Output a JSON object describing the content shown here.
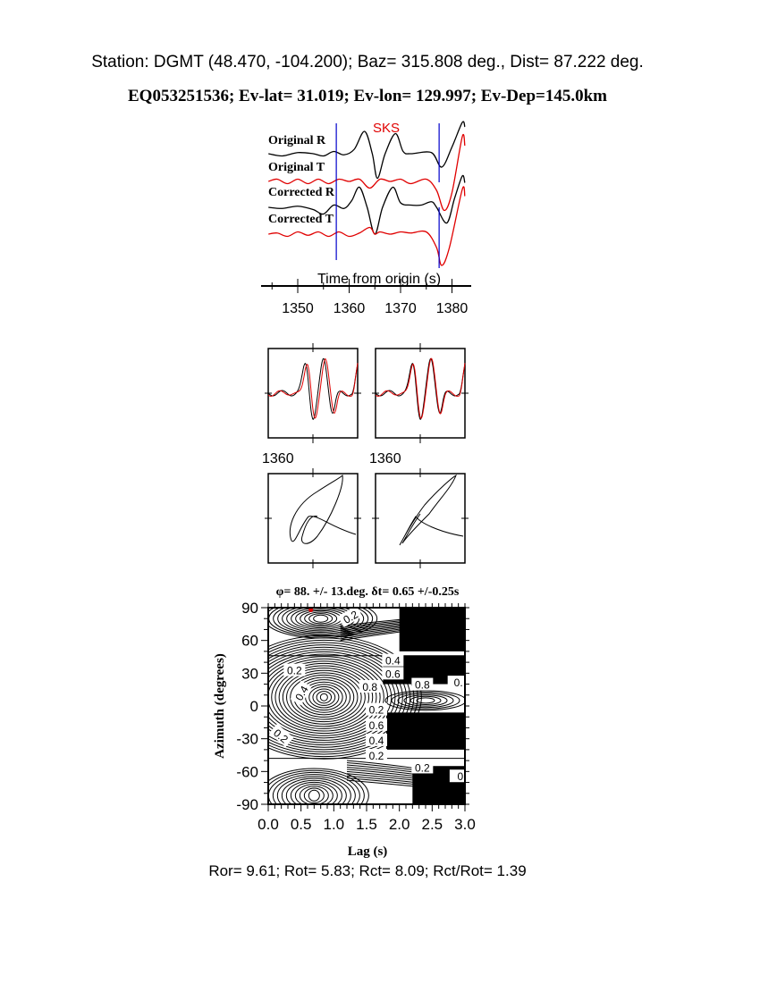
{
  "header": {
    "station_line": "Station: DGMT (48.470, -104.200); Baz=  315.808 deg., Dist=   87.222 deg.",
    "event_line": "EQ053251536; Ev-lat=  31.019; Ev-lon= 129.997; Ev-Dep=145.0km"
  },
  "colors": {
    "radial": "#000000",
    "transverse": "#e00000",
    "window_marker": "#0000cc",
    "best_fit_point": "#e00000"
  },
  "chart_data": [
    {
      "type": "line",
      "phase_label": "SKS",
      "xlabel": "Time from origin (s)",
      "xlim": [
        1344.3,
        1382.5
      ],
      "xticks": [
        "1350",
        "1360",
        "1370",
        "1380"
      ],
      "window": [
        1357.5,
        1377.5
      ],
      "series": [
        {
          "name": "Original R",
          "color": "#000000",
          "points": [
            [
              1344.3,
              0
            ],
            [
              1347,
              -0.1
            ],
            [
              1350,
              0.05
            ],
            [
              1353,
              0
            ],
            [
              1355,
              -0.1
            ],
            [
              1357,
              0.1
            ],
            [
              1359,
              -0.05
            ],
            [
              1361,
              0.2
            ],
            [
              1363,
              1.0
            ],
            [
              1364.5,
              0
            ],
            [
              1365.5,
              -1.1
            ],
            [
              1367,
              0
            ],
            [
              1369,
              0.9
            ],
            [
              1370.5,
              0.1
            ],
            [
              1372,
              0
            ],
            [
              1376,
              0.05
            ],
            [
              1378,
              -0.6
            ],
            [
              1380,
              0.3
            ],
            [
              1382,
              1.4
            ],
            [
              1382.5,
              1.2
            ]
          ]
        },
        {
          "name": "Original T",
          "color": "#e00000",
          "points": [
            [
              1344.3,
              0
            ],
            [
              1346,
              0.1
            ],
            [
              1348,
              -0.1
            ],
            [
              1350,
              0.1
            ],
            [
              1352,
              -0.1
            ],
            [
              1354,
              0.1
            ],
            [
              1356,
              -0.1
            ],
            [
              1358,
              0.1
            ],
            [
              1360,
              0
            ],
            [
              1362,
              0.1
            ],
            [
              1364,
              -0.3
            ],
            [
              1366,
              0.1
            ],
            [
              1368,
              0
            ],
            [
              1370,
              0.1
            ],
            [
              1372,
              -0.1
            ],
            [
              1375,
              0.1
            ],
            [
              1377,
              -0.4
            ],
            [
              1378.5,
              -1.3
            ],
            [
              1380,
              -0.5
            ],
            [
              1382,
              2.0
            ],
            [
              1382.5,
              1.6
            ]
          ]
        },
        {
          "name": "Corrected R",
          "color": "#000000",
          "points": [
            [
              1344.3,
              0
            ],
            [
              1347,
              -0.05
            ],
            [
              1350,
              0.05
            ],
            [
              1353,
              -0.1
            ],
            [
              1355,
              -0.3
            ],
            [
              1357,
              0.1
            ],
            [
              1359,
              -0.05
            ],
            [
              1360.5,
              0.3
            ],
            [
              1362,
              0.9
            ],
            [
              1363.5,
              0
            ],
            [
              1365,
              -1.2
            ],
            [
              1366.5,
              0
            ],
            [
              1368.5,
              0.9
            ],
            [
              1370,
              0.2
            ],
            [
              1372,
              0.1
            ],
            [
              1374,
              0.1
            ],
            [
              1376,
              0.25
            ],
            [
              1377,
              0
            ],
            [
              1379,
              -0.7
            ],
            [
              1380.5,
              0.4
            ],
            [
              1382,
              1.4
            ],
            [
              1382.5,
              1.1
            ]
          ]
        },
        {
          "name": "Corrected T",
          "color": "#e00000",
          "points": [
            [
              1344.3,
              0
            ],
            [
              1346,
              0.05
            ],
            [
              1348,
              -0.1
            ],
            [
              1350,
              0.1
            ],
            [
              1352,
              -0.05
            ],
            [
              1354,
              0.1
            ],
            [
              1356,
              -0.1
            ],
            [
              1358,
              0.1
            ],
            [
              1360,
              -0.1
            ],
            [
              1362,
              0.05
            ],
            [
              1364,
              0.3
            ],
            [
              1365,
              0
            ],
            [
              1366,
              0.1
            ],
            [
              1368,
              0
            ],
            [
              1370,
              0.1
            ],
            [
              1372,
              0.05
            ],
            [
              1375,
              0.1
            ],
            [
              1377,
              -0.6
            ],
            [
              1378,
              -1.4
            ],
            [
              1379.5,
              -0.6
            ],
            [
              1382,
              2.0
            ],
            [
              1382.5,
              1.7
            ]
          ]
        }
      ]
    },
    {
      "type": "line",
      "panels": [
        "original components",
        "corrected components"
      ],
      "xtick_label": "1360"
    },
    {
      "type": "line",
      "panels": [
        "original particle motion",
        "corrected particle motion"
      ]
    },
    {
      "type": "heatmap",
      "title": "φ= 88. +/- 13.deg. δt= 0.65 +/-0.25s",
      "xlabel": "Lag (s)",
      "ylabel": "Azimuth (degrees)",
      "xlim": [
        0,
        3
      ],
      "ylim": [
        -90,
        90
      ],
      "xticks": [
        "0.0",
        "0.5",
        "1.0",
        "1.5",
        "2.0",
        "2.5",
        "3.0"
      ],
      "yticks": [
        "90",
        "60",
        "30",
        "0",
        "-30",
        "-60",
        "-90"
      ],
      "best_fit": {
        "lag": 0.65,
        "azimuth": 88
      },
      "contour_labels": [
        "0.2",
        "0.2",
        "0.4",
        "0.6",
        "0.8",
        "0.",
        "0.4",
        "0.2",
        "0.8",
        "0.6",
        "0.4",
        "0.2",
        "0.2",
        "0.2",
        "0"
      ]
    }
  ],
  "footer": {
    "ratios": "Ror= 9.61; Rot= 5.83; Rct= 8.09; Rct/Rot= 1.39"
  }
}
